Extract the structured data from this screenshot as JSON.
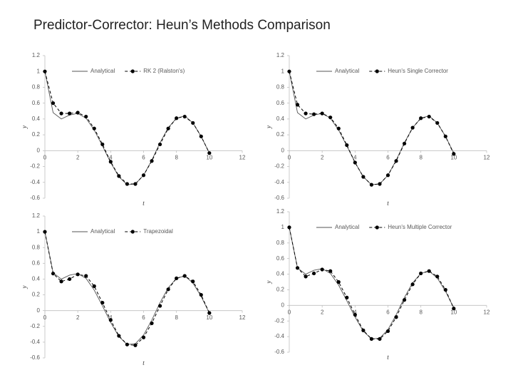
{
  "title": "Predictor-Corrector: Heun’s Methods Comparison",
  "chart_data": [
    {
      "type": "line",
      "x_label": "t",
      "y_label": "y",
      "legend": "top-center",
      "grid": false,
      "x": [
        0,
        0.5,
        1,
        1.5,
        2,
        2.5,
        3,
        3.5,
        4,
        4.5,
        5,
        5.5,
        6,
        6.5,
        7,
        7.5,
        8,
        8.5,
        9,
        9.5,
        10
      ],
      "xlim": [
        0,
        12
      ],
      "xticks": [
        0,
        2,
        4,
        6,
        8,
        10,
        12
      ],
      "ylim": [
        -0.6,
        1.2
      ],
      "yticks": [
        -0.6,
        -0.4,
        -0.2,
        0,
        0.2,
        0.4,
        0.6,
        0.8,
        1,
        1.2
      ],
      "series": [
        {
          "name": "Analytical",
          "color": "#555555",
          "dashed": false,
          "markers": false,
          "values": [
            1,
            0.48,
            0.4,
            0.45,
            0.47,
            0.41,
            0.26,
            0.06,
            -0.15,
            -0.33,
            -0.43,
            -0.42,
            -0.31,
            -0.12,
            0.1,
            0.29,
            0.41,
            0.44,
            0.35,
            0.18,
            -0.03
          ]
        },
        {
          "name": "RK 2 (Ralston's)",
          "color": "#000000",
          "dashed": true,
          "markers": true,
          "values": [
            1,
            0.6,
            0.47,
            0.47,
            0.48,
            0.43,
            0.28,
            0.08,
            -0.14,
            -0.32,
            -0.42,
            -0.42,
            -0.31,
            -0.13,
            0.08,
            0.28,
            0.41,
            0.43,
            0.35,
            0.18,
            -0.03
          ]
        }
      ]
    },
    {
      "type": "line",
      "x_label": "t",
      "y_label": "y",
      "legend": "top-center",
      "grid": false,
      "x": [
        0,
        0.5,
        1,
        1.5,
        2,
        2.5,
        3,
        3.5,
        4,
        4.5,
        5,
        5.5,
        6,
        6.5,
        7,
        7.5,
        8,
        8.5,
        9,
        9.5,
        10
      ],
      "xlim": [
        0,
        12
      ],
      "xticks": [
        0,
        2,
        4,
        6,
        8,
        10,
        12
      ],
      "ylim": [
        -0.6,
        1.2
      ],
      "yticks": [
        -0.6,
        -0.4,
        -0.2,
        0,
        0.2,
        0.4,
        0.6,
        0.8,
        1,
        1.2
      ],
      "series": [
        {
          "name": "Analytical",
          "color": "#555555",
          "dashed": false,
          "markers": false,
          "values": [
            1,
            0.48,
            0.4,
            0.45,
            0.47,
            0.41,
            0.26,
            0.06,
            -0.15,
            -0.33,
            -0.43,
            -0.42,
            -0.31,
            -0.12,
            0.1,
            0.29,
            0.41,
            0.44,
            0.35,
            0.18,
            -0.03
          ]
        },
        {
          "name": "Heun's Single Corrector",
          "color": "#000000",
          "dashed": true,
          "markers": true,
          "values": [
            1,
            0.58,
            0.47,
            0.46,
            0.47,
            0.42,
            0.28,
            0.07,
            -0.15,
            -0.33,
            -0.43,
            -0.42,
            -0.31,
            -0.13,
            0.09,
            0.29,
            0.41,
            0.43,
            0.35,
            0.18,
            -0.04
          ]
        }
      ]
    },
    {
      "type": "line",
      "x_label": "t",
      "y_label": "y",
      "legend": "top-center",
      "grid": false,
      "x": [
        0,
        0.5,
        1,
        1.5,
        2,
        2.5,
        3,
        3.5,
        4,
        4.5,
        5,
        5.5,
        6,
        6.5,
        7,
        7.5,
        8,
        8.5,
        9,
        9.5,
        10
      ],
      "xlim": [
        0,
        12
      ],
      "xticks": [
        0,
        2,
        4,
        6,
        8,
        10,
        12
      ],
      "ylim": [
        -0.6,
        1.2
      ],
      "yticks": [
        -0.6,
        -0.4,
        -0.2,
        0,
        0.2,
        0.4,
        0.6,
        0.8,
        1,
        1.2
      ],
      "series": [
        {
          "name": "Analytical",
          "color": "#555555",
          "dashed": false,
          "markers": false,
          "values": [
            1,
            0.48,
            0.4,
            0.45,
            0.47,
            0.41,
            0.26,
            0.06,
            -0.15,
            -0.33,
            -0.43,
            -0.42,
            -0.31,
            -0.12,
            0.1,
            0.29,
            0.41,
            0.44,
            0.35,
            0.18,
            -0.03
          ]
        },
        {
          "name": "Trapezoidal",
          "color": "#000000",
          "dashed": true,
          "markers": true,
          "values": [
            1,
            0.47,
            0.37,
            0.4,
            0.46,
            0.44,
            0.31,
            0.1,
            -0.12,
            -0.32,
            -0.43,
            -0.44,
            -0.34,
            -0.16,
            0.06,
            0.27,
            0.41,
            0.44,
            0.37,
            0.2,
            -0.03
          ]
        }
      ]
    },
    {
      "type": "line",
      "x_label": "t",
      "y_label": "y",
      "legend": "top-center",
      "grid": false,
      "x": [
        0,
        0.5,
        1,
        1.5,
        2,
        2.5,
        3,
        3.5,
        4,
        4.5,
        5,
        5.5,
        6,
        6.5,
        7,
        7.5,
        8,
        8.5,
        9,
        9.5,
        10
      ],
      "xlim": [
        0,
        12
      ],
      "xticks": [
        0,
        2,
        4,
        6,
        8,
        10,
        12
      ],
      "ylim": [
        -0.6,
        1.2
      ],
      "yticks": [
        -0.6,
        -0.4,
        -0.2,
        0,
        0.2,
        0.4,
        0.6,
        0.8,
        1,
        1.2
      ],
      "series": [
        {
          "name": "Analytical",
          "color": "#555555",
          "dashed": false,
          "markers": false,
          "values": [
            1,
            0.48,
            0.4,
            0.45,
            0.47,
            0.41,
            0.26,
            0.06,
            -0.15,
            -0.33,
            -0.43,
            -0.42,
            -0.31,
            -0.12,
            0.1,
            0.29,
            0.41,
            0.44,
            0.35,
            0.18,
            -0.03
          ]
        },
        {
          "name": "Heun's Multiple Corrector",
          "color": "#000000",
          "dashed": true,
          "markers": true,
          "values": [
            1,
            0.48,
            0.37,
            0.41,
            0.46,
            0.44,
            0.3,
            0.1,
            -0.12,
            -0.32,
            -0.43,
            -0.43,
            -0.33,
            -0.15,
            0.07,
            0.27,
            0.41,
            0.44,
            0.37,
            0.2,
            -0.04
          ]
        }
      ]
    }
  ]
}
